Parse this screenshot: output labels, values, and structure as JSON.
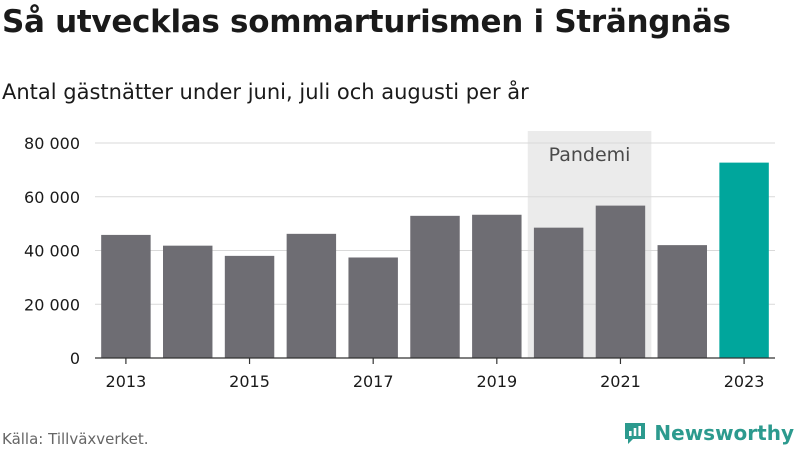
{
  "title": "Så utvecklas sommarturismen i Strängnäs",
  "subtitle": "Antal gästnätter under juni, juli och augusti per år",
  "source": "Källa: Tillväxverket.",
  "brand": "Newsworthy",
  "colors": {
    "bar": "#6e6d73",
    "highlight": "#00a69c",
    "band": "#ebebeb",
    "grid": "#d9d9d9",
    "axis": "#333333",
    "brand": "#2c9a8e"
  },
  "chart_data": {
    "type": "bar",
    "categories": [
      "2013",
      "2014",
      "2015",
      "2016",
      "2017",
      "2018",
      "2019",
      "2020",
      "2021",
      "2022",
      "2023"
    ],
    "values": [
      45800,
      41800,
      38000,
      46200,
      37400,
      52900,
      53300,
      48500,
      56700,
      42000,
      72700
    ],
    "highlight_index": 10,
    "x_tick_labels": [
      "2013",
      "2015",
      "2017",
      "2019",
      "2021",
      "2023"
    ],
    "y_ticks": [
      0,
      20000,
      40000,
      60000,
      80000
    ],
    "y_tick_labels": [
      "0",
      "20 000",
      "40 000",
      "60 000",
      "80 000"
    ],
    "ylim": [
      0,
      80000
    ],
    "grid": true,
    "annotation": {
      "label": "Pandemi",
      "from": "2020",
      "to": "2021"
    }
  }
}
